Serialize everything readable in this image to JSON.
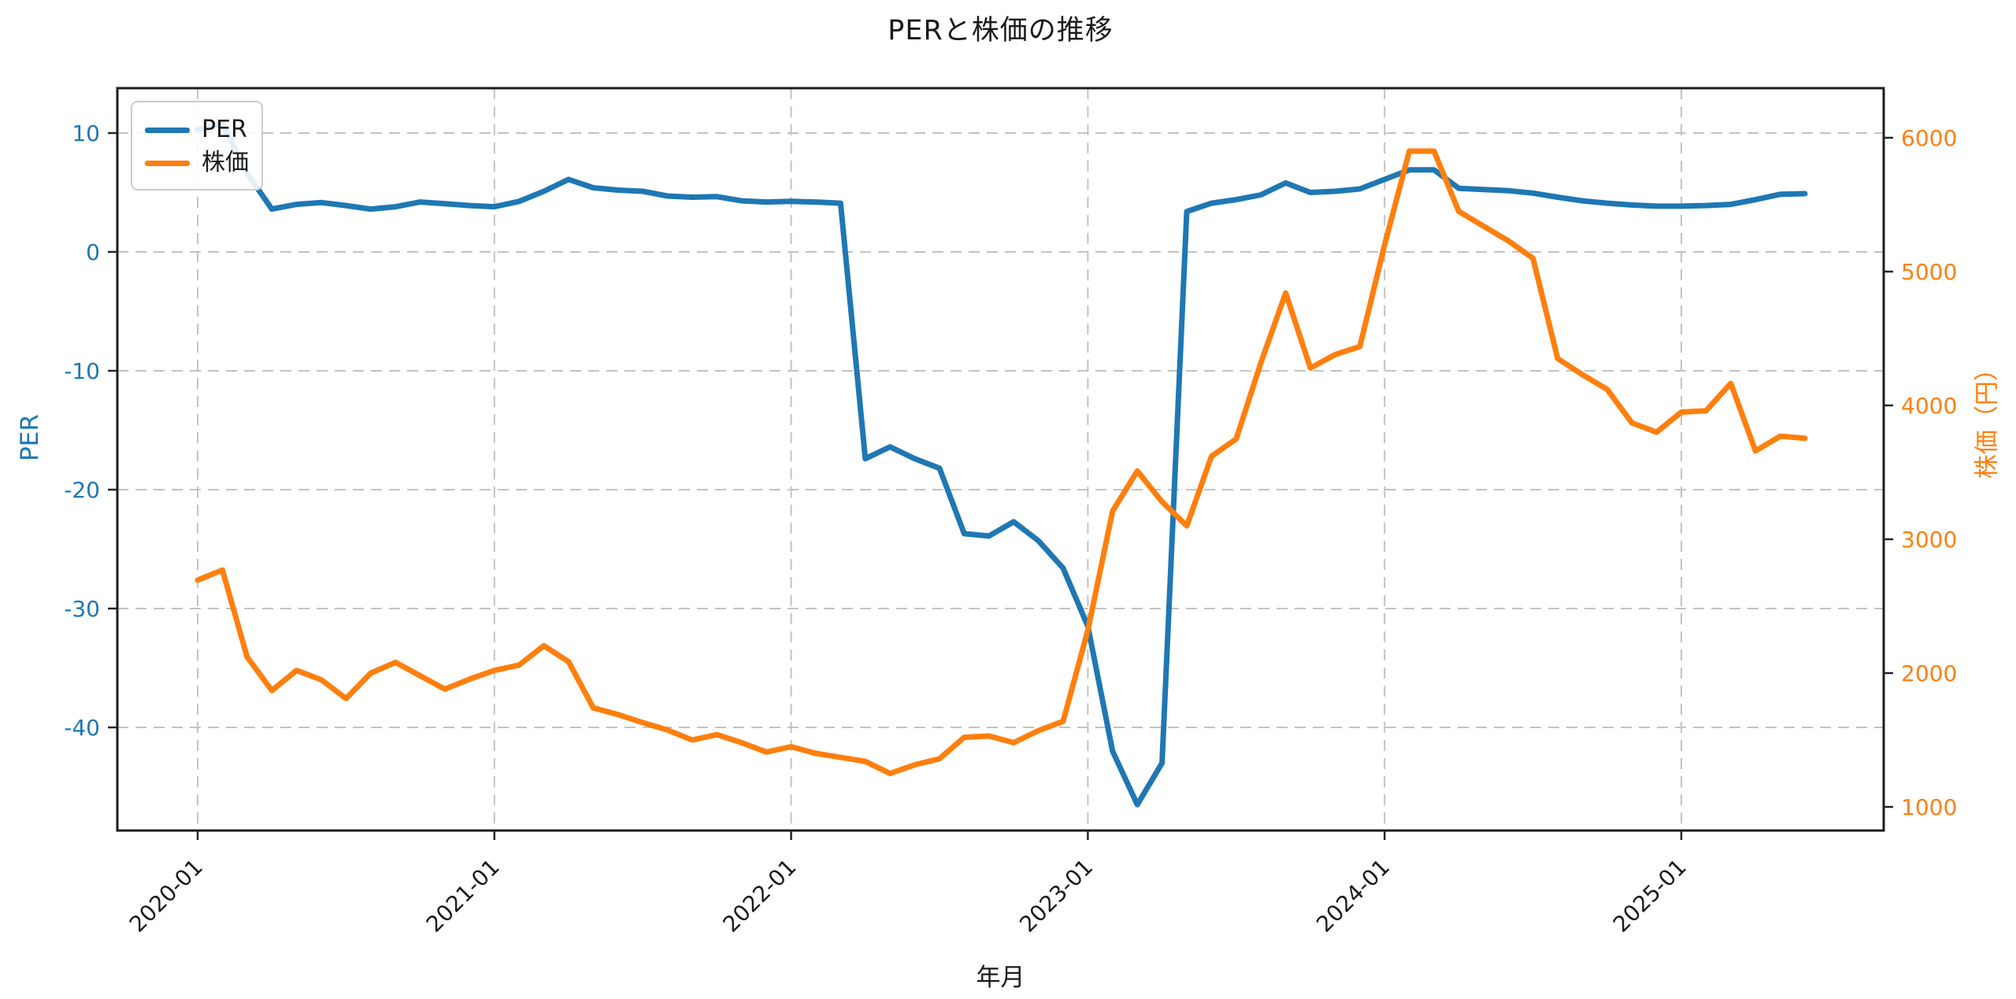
{
  "chart_data": {
    "type": "line",
    "title": "PERと株価の推移",
    "xlabel": "年月",
    "ylabel_left": "PER",
    "ylabel_right": "株価（円）",
    "grid": "dashed",
    "legend_position": "upper-left",
    "x": [
      "2020-01",
      "2020-02",
      "2020-03",
      "2020-04",
      "2020-05",
      "2020-06",
      "2020-07",
      "2020-08",
      "2020-09",
      "2020-10",
      "2020-11",
      "2020-12",
      "2021-01",
      "2021-02",
      "2021-03",
      "2021-04",
      "2021-05",
      "2021-06",
      "2021-07",
      "2021-08",
      "2021-09",
      "2021-10",
      "2021-11",
      "2021-12",
      "2022-01",
      "2022-02",
      "2022-03",
      "2022-04",
      "2022-05",
      "2022-06",
      "2022-07",
      "2022-08",
      "2022-09",
      "2022-10",
      "2022-11",
      "2022-12",
      "2023-01",
      "2023-02",
      "2023-03",
      "2023-04",
      "2023-05",
      "2023-06",
      "2023-07",
      "2023-08",
      "2023-09",
      "2023-10",
      "2023-11",
      "2023-12",
      "2024-01",
      "2024-02",
      "2024-03",
      "2024-04",
      "2024-05",
      "2024-06",
      "2024-07",
      "2024-08",
      "2024-09",
      "2024-10",
      "2024-11",
      "2024-12",
      "2025-01",
      "2025-02",
      "2025-03",
      "2025-04",
      "2025-05",
      "2025-06"
    ],
    "xticks": [
      "2020-01",
      "2021-01",
      "2022-01",
      "2023-01",
      "2024-01",
      "2025-01"
    ],
    "left_axis": {
      "label": "PER",
      "ticks": [
        10,
        0,
        -10,
        -20,
        -30,
        -40
      ],
      "range": [
        -48,
        11.5
      ],
      "color": "#1f77b4"
    },
    "right_axis": {
      "label": "株価（円）",
      "ticks": [
        6000,
        5000,
        4000,
        3000,
        2000,
        1000
      ],
      "range": [
        820,
        6370
      ],
      "color": "#ff7f0e"
    },
    "series": [
      {
        "name": "PER",
        "axis": "left",
        "color": "#1f77b4",
        "values": [
          10.3,
          10.8,
          6.6,
          3.6,
          4.0,
          4.15,
          3.9,
          3.6,
          3.8,
          4.2,
          4.05,
          3.9,
          3.8,
          4.25,
          5.1,
          6.1,
          5.4,
          5.2,
          5.1,
          4.7,
          4.6,
          4.65,
          4.3,
          4.2,
          4.25,
          4.2,
          4.1,
          -17.4,
          -16.4,
          -17.4,
          -18.2,
          -23.7,
          -23.9,
          -22.7,
          -24.3,
          -26.6,
          -31.5,
          -42.0,
          -46.5,
          -43.0,
          3.4,
          4.1,
          4.4,
          4.8,
          5.8,
          5.0,
          5.1,
          5.3,
          6.1,
          6.9,
          6.9,
          5.35,
          5.25,
          5.15,
          4.95,
          4.6,
          4.3,
          4.1,
          3.95,
          3.85,
          3.85,
          3.9,
          4.0,
          4.4,
          4.85,
          4.9
        ]
      },
      {
        "name": "株価",
        "axis": "right",
        "color": "#ff7f0e",
        "values": [
          2695,
          2770,
          2120,
          1870,
          2020,
          1950,
          1810,
          2000,
          2080,
          1980,
          1880,
          1955,
          2020,
          2060,
          2205,
          2085,
          1740,
          1690,
          1630,
          1575,
          1500,
          1540,
          1480,
          1410,
          1450,
          1400,
          1370,
          1340,
          1250,
          1315,
          1360,
          1520,
          1530,
          1480,
          1570,
          1640,
          2320,
          3210,
          3510,
          3280,
          3100,
          3620,
          3750,
          4320,
          4840,
          4280,
          4380,
          4440,
          5200,
          5900,
          5900,
          5450,
          5340,
          5230,
          5100,
          4350,
          4230,
          4120,
          3870,
          3800,
          3950,
          3960,
          4165,
          3660,
          3770,
          3755
        ]
      }
    ]
  }
}
